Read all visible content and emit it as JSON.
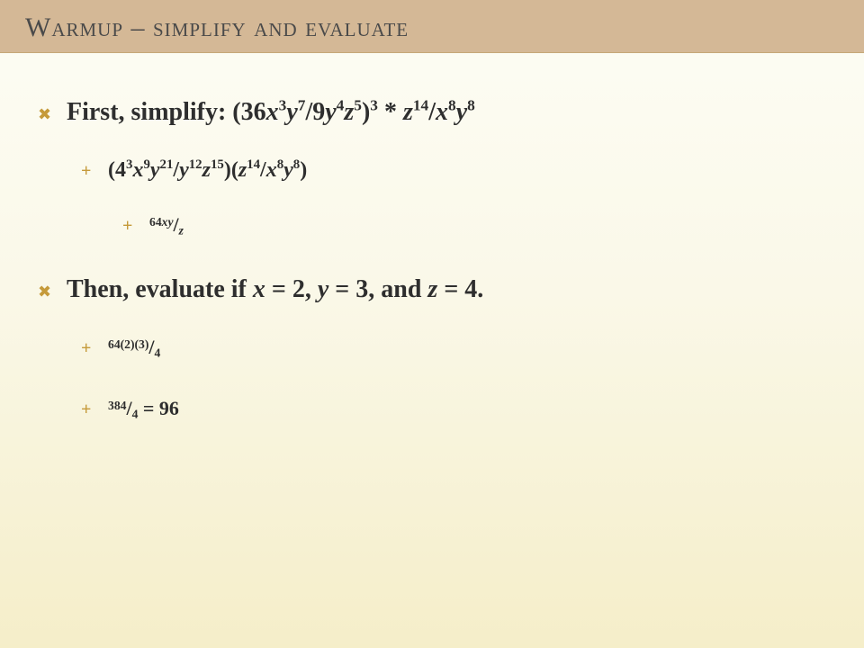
{
  "slide": {
    "background_gradient": [
      "#fdfdf5",
      "#faf8e8",
      "#f5eec9"
    ],
    "title_bar_color": "#d4b896",
    "title_text_color": "#4a4a4a",
    "bullet_color": "#c59a3a",
    "body_text_color": "#2e2e2e",
    "title": "Warmup – simplify and evaluate",
    "title_fontsize": 30,
    "bullets": {
      "level1_glyph": "✖",
      "level2_glyph": "+",
      "level3_glyph": "+"
    },
    "lines": {
      "l1_prefix": "First, simplify: (36",
      "l1_a": "/9",
      "l1_b": " * ",
      "l1_c": "/",
      "l2_a": "(4",
      "l2_b": "/",
      "l2_c": ")(",
      "l2_d": ")",
      "l2_close": "/",
      "l3_num": "64",
      "l3_slash": "/",
      "l4_prefix": "Then, evaluate if ",
      "l4_eqx": " = 2, ",
      "l4_eqy": " = 3, and ",
      "l4_eqz": " = 4.",
      "l5_num": "64(2)(3)",
      "l5_slash": "/",
      "l5_den": "4",
      "l6_num": "384",
      "l6_slash": "/",
      "l6_den": "4",
      "l6_eq": " = 96"
    },
    "exponents": {
      "e3": "3",
      "e7": "7",
      "e4": "4",
      "e5": "5",
      "e14": "14",
      "e8": "8",
      "e9": "9",
      "e21": "21",
      "e12": "12",
      "e15": "15"
    },
    "vars": {
      "x": "x",
      "y": "y",
      "z": "z",
      "xy": "xy"
    },
    "fontsize": {
      "l1": 28,
      "l2": 24,
      "l3": 22
    }
  }
}
